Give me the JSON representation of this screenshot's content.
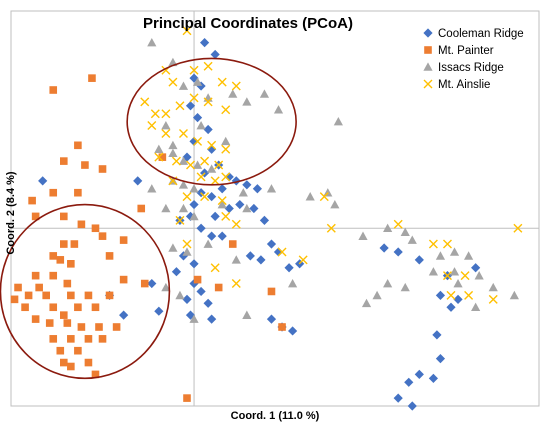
{
  "chart_data": {
    "type": "scatter",
    "title": "Principal Coordinates (PCoA)",
    "xlabel": "Coord. 1 (11.0 %)",
    "ylabel": "Coord. 2 (8.4 %)",
    "xlim": [
      -0.52,
      0.98
    ],
    "ylim": [
      -0.45,
      0.55
    ],
    "grid": false,
    "legend_position": "top-right",
    "series": [
      {
        "name": "Cooleman Ridge",
        "marker": "diamond",
        "color": "#4472C4",
        "points": [
          [
            0.03,
            0.47
          ],
          [
            0.06,
            0.44
          ],
          [
            0.0,
            0.38
          ],
          [
            0.02,
            0.36
          ],
          [
            -0.01,
            0.31
          ],
          [
            0.01,
            0.28
          ],
          [
            0.04,
            0.25
          ],
          [
            0.0,
            0.22
          ],
          [
            0.05,
            0.2
          ],
          [
            -0.02,
            0.18
          ],
          [
            0.07,
            0.16
          ],
          [
            0.03,
            0.14
          ],
          [
            0.1,
            0.13
          ],
          [
            0.12,
            0.12
          ],
          [
            0.15,
            0.11
          ],
          [
            0.18,
            0.1
          ],
          [
            0.08,
            0.1
          ],
          [
            0.02,
            0.09
          ],
          [
            0.05,
            0.08
          ],
          [
            0.0,
            0.06
          ],
          [
            0.13,
            0.06
          ],
          [
            0.17,
            0.05
          ],
          [
            0.1,
            0.05
          ],
          [
            0.06,
            0.03
          ],
          [
            -0.01,
            0.03
          ],
          [
            -0.04,
            0.02
          ],
          [
            0.2,
            0.02
          ],
          [
            0.02,
            0.0
          ],
          [
            0.05,
            -0.02
          ],
          [
            0.08,
            -0.02
          ],
          [
            0.22,
            -0.04
          ],
          [
            0.24,
            -0.06
          ],
          [
            -0.03,
            -0.07
          ],
          [
            0.16,
            -0.07
          ],
          [
            0.19,
            -0.08
          ],
          [
            0.0,
            -0.09
          ],
          [
            0.27,
            -0.1
          ],
          [
            0.3,
            -0.09
          ],
          [
            -0.05,
            -0.11
          ],
          [
            0.0,
            -0.14
          ],
          [
            0.02,
            -0.16
          ],
          [
            0.04,
            -0.19
          ],
          [
            -0.1,
            -0.21
          ],
          [
            -0.01,
            -0.22
          ],
          [
            0.05,
            -0.23
          ],
          [
            0.22,
            -0.23
          ],
          [
            0.25,
            -0.25
          ],
          [
            0.28,
            -0.26
          ],
          [
            -0.12,
            -0.14
          ],
          [
            -0.02,
            -0.18
          ],
          [
            -0.24,
            -0.17
          ],
          [
            -0.2,
            -0.22
          ],
          [
            -0.43,
            0.12
          ],
          [
            -0.16,
            0.12
          ],
          [
            0.54,
            -0.05
          ],
          [
            0.58,
            -0.06
          ],
          [
            0.64,
            -0.08
          ],
          [
            0.72,
            -0.12
          ],
          [
            0.7,
            -0.17
          ],
          [
            0.73,
            -0.2
          ],
          [
            0.75,
            -0.18
          ],
          [
            0.8,
            -0.1
          ],
          [
            0.69,
            -0.27
          ],
          [
            0.7,
            -0.33
          ],
          [
            0.68,
            -0.38
          ],
          [
            0.64,
            -0.37
          ],
          [
            0.61,
            -0.39
          ],
          [
            0.62,
            -0.45
          ],
          [
            0.58,
            -0.43
          ]
        ]
      },
      {
        "name": "Mt. Painter",
        "marker": "square",
        "color": "#ED7D31",
        "points": [
          [
            -0.33,
            0.21
          ],
          [
            -0.37,
            0.17
          ],
          [
            -0.31,
            0.16
          ],
          [
            -0.26,
            0.15
          ],
          [
            -0.4,
            0.09
          ],
          [
            -0.33,
            0.09
          ],
          [
            -0.46,
            0.07
          ],
          [
            -0.45,
            0.03
          ],
          [
            -0.37,
            0.03
          ],
          [
            -0.32,
            0.01
          ],
          [
            -0.28,
            0.0
          ],
          [
            -0.26,
            -0.02
          ],
          [
            -0.34,
            -0.04
          ],
          [
            -0.37,
            -0.04
          ],
          [
            -0.2,
            -0.03
          ],
          [
            -0.38,
            -0.08
          ],
          [
            -0.4,
            -0.07
          ],
          [
            -0.24,
            -0.07
          ],
          [
            -0.35,
            -0.09
          ],
          [
            -0.4,
            -0.12
          ],
          [
            -0.45,
            -0.12
          ],
          [
            -0.2,
            -0.13
          ],
          [
            -0.14,
            -0.14
          ],
          [
            -0.36,
            -0.14
          ],
          [
            -0.44,
            -0.15
          ],
          [
            -0.5,
            -0.15
          ],
          [
            -0.47,
            -0.17
          ],
          [
            -0.42,
            -0.17
          ],
          [
            -0.35,
            -0.17
          ],
          [
            -0.3,
            -0.17
          ],
          [
            -0.24,
            -0.17
          ],
          [
            -0.51,
            -0.18
          ],
          [
            -0.48,
            -0.2
          ],
          [
            -0.4,
            -0.2
          ],
          [
            -0.33,
            -0.2
          ],
          [
            -0.28,
            -0.2
          ],
          [
            -0.37,
            -0.22
          ],
          [
            -0.45,
            -0.23
          ],
          [
            -0.41,
            -0.24
          ],
          [
            -0.36,
            -0.24
          ],
          [
            -0.32,
            -0.25
          ],
          [
            -0.27,
            -0.25
          ],
          [
            -0.22,
            -0.25
          ],
          [
            -0.4,
            -0.28
          ],
          [
            -0.35,
            -0.28
          ],
          [
            -0.3,
            -0.28
          ],
          [
            -0.26,
            -0.28
          ],
          [
            -0.38,
            -0.31
          ],
          [
            -0.33,
            -0.31
          ],
          [
            -0.37,
            -0.34
          ],
          [
            -0.3,
            -0.34
          ],
          [
            -0.35,
            -0.35
          ],
          [
            -0.28,
            -0.37
          ],
          [
            -0.29,
            0.38
          ],
          [
            -0.4,
            0.35
          ],
          [
            -0.09,
            0.18
          ],
          [
            0.01,
            -0.13
          ],
          [
            0.07,
            -0.15
          ],
          [
            0.11,
            -0.04
          ],
          [
            0.22,
            -0.16
          ],
          [
            0.25,
            -0.25
          ],
          [
            -0.02,
            -0.43
          ],
          [
            -0.15,
            0.05
          ]
        ]
      },
      {
        "name": "Issacs Ridge",
        "marker": "triangle",
        "color": "#A5A5A5",
        "points": [
          [
            -0.12,
            0.47
          ],
          [
            -0.06,
            0.42
          ],
          [
            -0.03,
            0.36
          ],
          [
            0.01,
            0.37
          ],
          [
            0.04,
            0.33
          ],
          [
            0.11,
            0.34
          ],
          [
            0.15,
            0.32
          ],
          [
            0.2,
            0.34
          ],
          [
            0.24,
            0.3
          ],
          [
            -0.08,
            0.26
          ],
          [
            0.02,
            0.26
          ],
          [
            0.09,
            0.22
          ],
          [
            -0.1,
            0.2
          ],
          [
            -0.06,
            0.19
          ],
          [
            -0.03,
            0.17
          ],
          [
            0.01,
            0.16
          ],
          [
            0.05,
            0.15
          ],
          [
            -0.06,
            0.12
          ],
          [
            -0.03,
            0.11
          ],
          [
            0.0,
            0.1
          ],
          [
            -0.12,
            0.1
          ],
          [
            0.14,
            0.09
          ],
          [
            0.22,
            0.1
          ],
          [
            0.33,
            0.08
          ],
          [
            0.38,
            0.09
          ],
          [
            0.4,
            0.06
          ],
          [
            0.41,
            0.27
          ],
          [
            -0.08,
            0.05
          ],
          [
            -0.03,
            0.05
          ],
          [
            0.0,
            0.03
          ],
          [
            0.08,
            0.06
          ],
          [
            0.15,
            0.05
          ],
          [
            0.48,
            -0.02
          ],
          [
            0.55,
            0.0
          ],
          [
            0.6,
            -0.01
          ],
          [
            0.62,
            -0.03
          ],
          [
            0.7,
            -0.07
          ],
          [
            0.74,
            -0.06
          ],
          [
            0.78,
            -0.07
          ],
          [
            0.68,
            -0.11
          ],
          [
            0.74,
            -0.11
          ],
          [
            0.81,
            -0.12
          ],
          [
            0.55,
            -0.14
          ],
          [
            0.52,
            -0.17
          ],
          [
            0.49,
            -0.19
          ],
          [
            0.6,
            -0.15
          ],
          [
            0.75,
            -0.14
          ],
          [
            0.85,
            -0.15
          ],
          [
            0.91,
            -0.17
          ],
          [
            0.8,
            -0.2
          ],
          [
            -0.06,
            -0.05
          ],
          [
            -0.02,
            -0.06
          ],
          [
            0.04,
            -0.04
          ],
          [
            0.12,
            -0.08
          ],
          [
            0.28,
            -0.14
          ],
          [
            -0.08,
            -0.15
          ],
          [
            -0.04,
            -0.17
          ],
          [
            0.0,
            -0.23
          ],
          [
            0.15,
            -0.22
          ],
          [
            -0.06,
            0.21
          ]
        ]
      },
      {
        "name": "Mt. Ainslie",
        "marker": "x",
        "color": "#FFC000",
        "points": [
          [
            -0.02,
            0.5
          ],
          [
            -0.08,
            0.4
          ],
          [
            -0.06,
            0.37
          ],
          [
            0.0,
            0.4
          ],
          [
            0.04,
            0.41
          ],
          [
            0.08,
            0.37
          ],
          [
            0.12,
            0.36
          ],
          [
            -0.14,
            0.32
          ],
          [
            -0.11,
            0.29
          ],
          [
            -0.08,
            0.29
          ],
          [
            -0.04,
            0.31
          ],
          [
            0.0,
            0.33
          ],
          [
            0.04,
            0.32
          ],
          [
            0.09,
            0.3
          ],
          [
            -0.12,
            0.26
          ],
          [
            -0.08,
            0.24
          ],
          [
            -0.03,
            0.24
          ],
          [
            0.01,
            0.22
          ],
          [
            0.05,
            0.21
          ],
          [
            0.09,
            0.2
          ],
          [
            -0.1,
            0.18
          ],
          [
            -0.05,
            0.17
          ],
          [
            -0.01,
            0.16
          ],
          [
            0.03,
            0.17
          ],
          [
            0.07,
            0.16
          ],
          [
            0.02,
            0.13
          ],
          [
            0.06,
            0.12
          ],
          [
            0.09,
            0.13
          ],
          [
            -0.06,
            0.12
          ],
          [
            -0.02,
            0.08
          ],
          [
            0.03,
            0.08
          ],
          [
            0.08,
            0.07
          ],
          [
            -0.04,
            0.02
          ],
          [
            0.09,
            0.03
          ],
          [
            0.12,
            0.01
          ],
          [
            0.37,
            0.08
          ],
          [
            0.39,
            0.0
          ],
          [
            0.25,
            -0.06
          ],
          [
            0.31,
            -0.08
          ],
          [
            0.58,
            0.01
          ],
          [
            0.68,
            -0.04
          ],
          [
            0.72,
            -0.04
          ],
          [
            0.72,
            -0.12
          ],
          [
            0.77,
            -0.12
          ],
          [
            0.73,
            -0.17
          ],
          [
            0.78,
            -0.17
          ],
          [
            0.85,
            -0.18
          ],
          [
            0.92,
            0.0
          ],
          [
            -0.02,
            -0.04
          ],
          [
            0.06,
            -0.1
          ],
          [
            0.12,
            -0.14
          ]
        ]
      }
    ],
    "annotations": [
      {
        "shape": "ellipse",
        "color": "#8B1A0E",
        "center": [
          0.05,
          0.27
        ],
        "radius": [
          0.24,
          0.16
        ]
      },
      {
        "shape": "ellipse",
        "color": "#8B1A0E",
        "center": [
          -0.31,
          -0.16
        ],
        "radius": [
          0.24,
          0.22
        ]
      }
    ]
  }
}
